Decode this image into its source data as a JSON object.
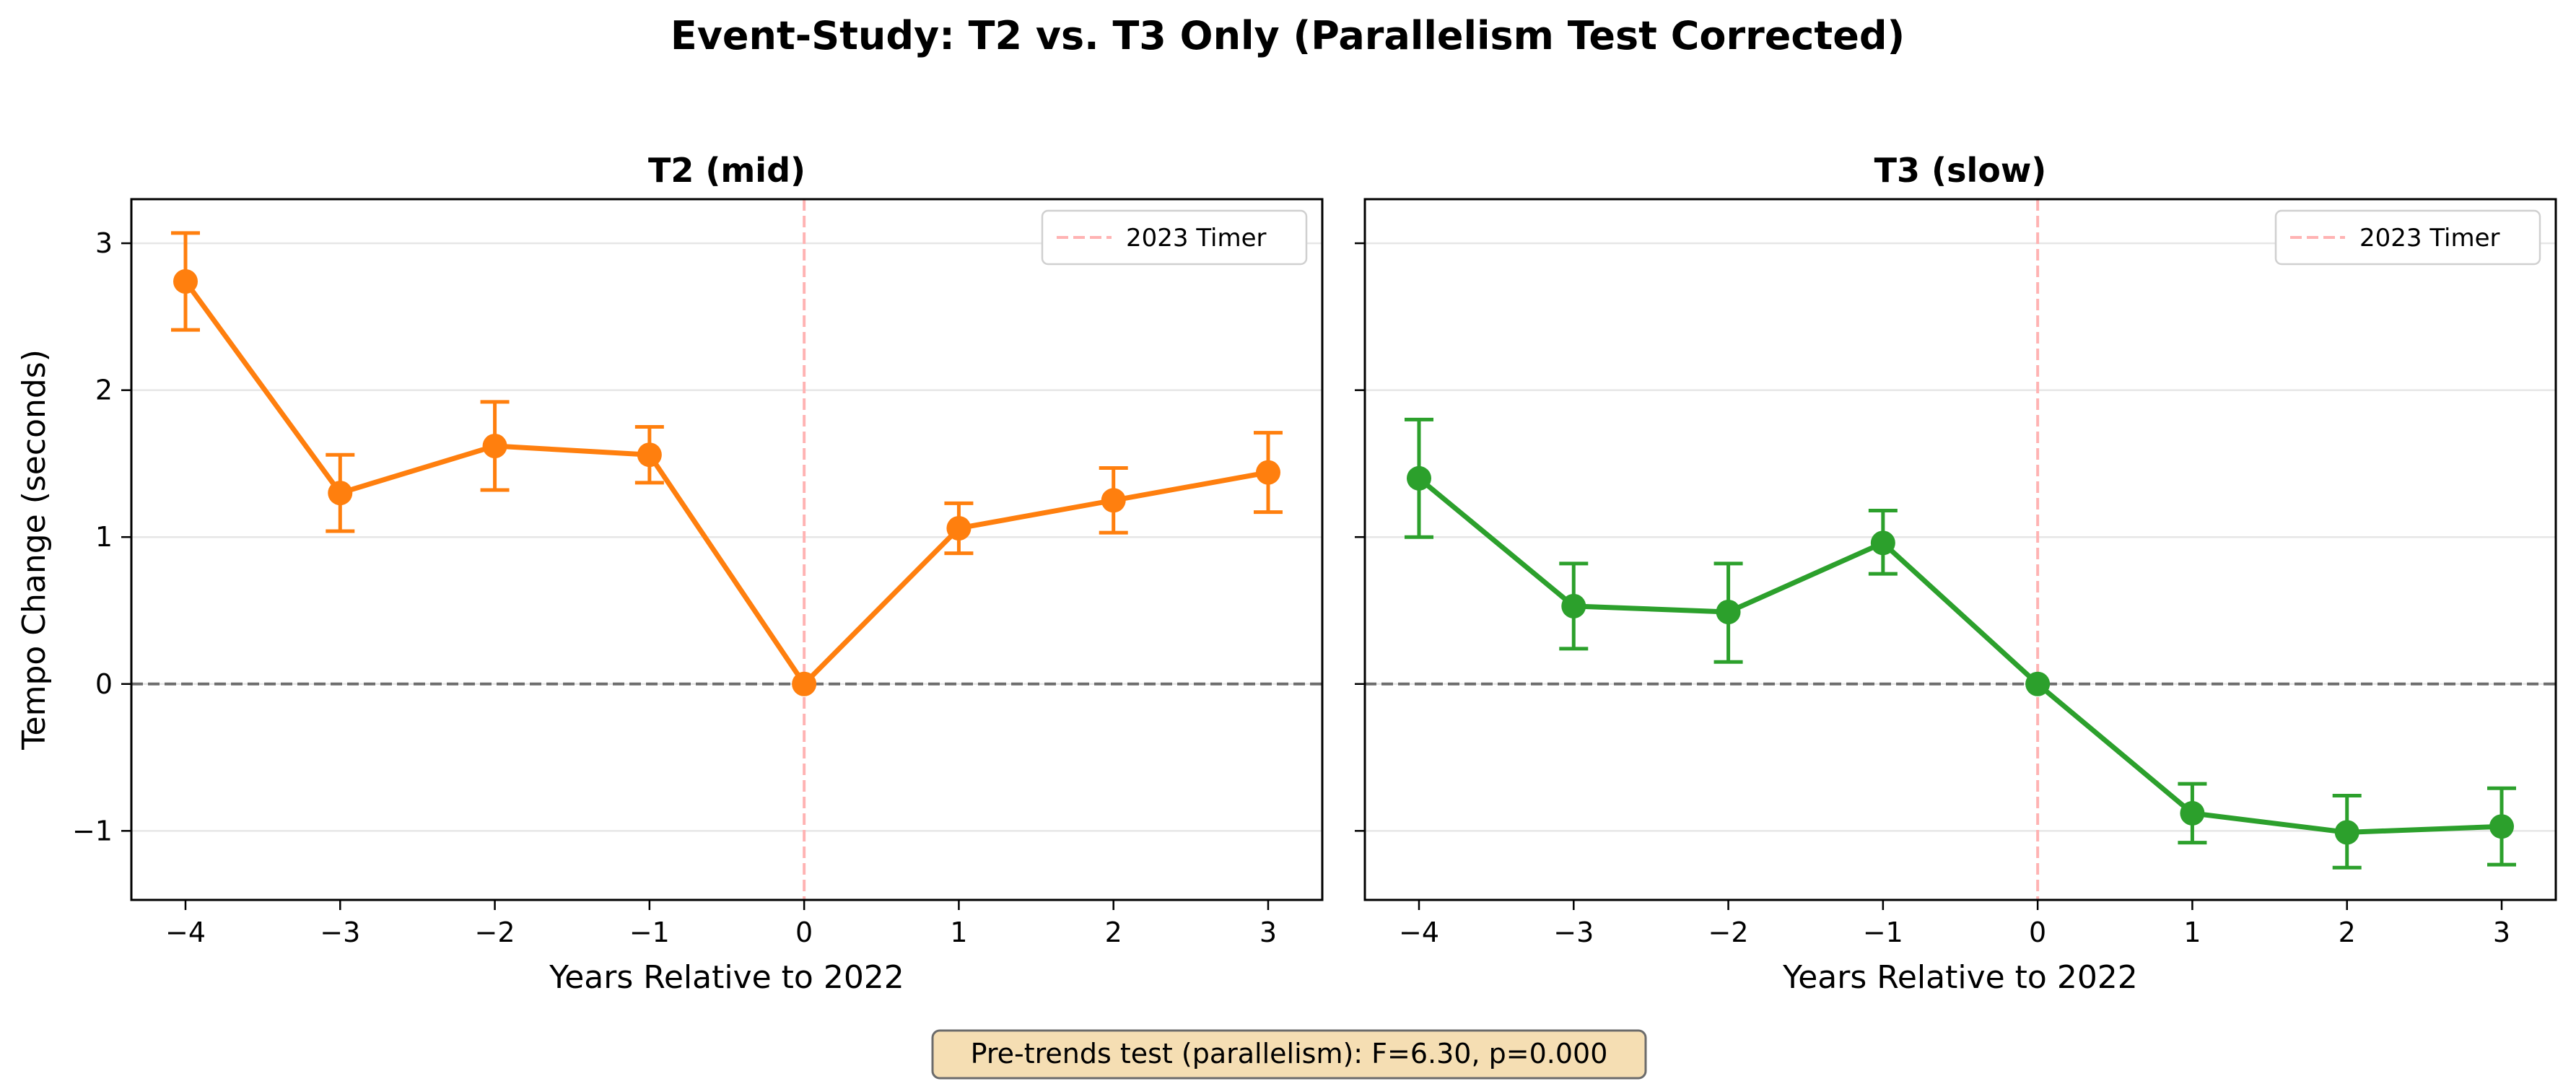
{
  "figure": {
    "title": "Event-Study: T2 vs. T3 Only (Parallelism Test Corrected)",
    "annotation": "Pre-trends test (parallelism): F=6.30, p=0.000"
  },
  "chart_data": [
    {
      "type": "line",
      "title": "T2 (mid)",
      "xlabel": "Years Relative to 2022",
      "ylabel": "Tempo Change (seconds)",
      "xlim": [
        -4.35,
        3.35
      ],
      "ylim": [
        -1.47,
        3.3
      ],
      "xticks": [
        -4,
        -3,
        -2,
        -1,
        0,
        1,
        2,
        3
      ],
      "xtick_labels": [
        "−4",
        "−3",
        "−2",
        "−1",
        "0",
        "1",
        "2",
        "3"
      ],
      "yticks": [
        -1,
        0,
        1,
        2,
        3
      ],
      "ytick_labels": [
        "−1",
        "0",
        "1",
        "2",
        "3"
      ],
      "grid": "horizontal",
      "legend": {
        "position": "top-right",
        "entries": [
          "2023 Timer"
        ]
      },
      "reference_lines": {
        "horizontal_y": 0,
        "vertical_x": 0
      },
      "series": [
        {
          "color": "#ff7f0e",
          "x": [
            -4,
            -3,
            -2,
            -1,
            0,
            1,
            2,
            3
          ],
          "y": [
            2.74,
            1.3,
            1.62,
            1.56,
            0.0,
            1.06,
            1.25,
            1.44
          ],
          "ci_low": [
            2.41,
            1.04,
            1.32,
            1.37,
            0.0,
            0.89,
            1.03,
            1.17
          ],
          "ci_high": [
            3.07,
            1.56,
            1.92,
            1.75,
            0.0,
            1.23,
            1.47,
            1.71
          ]
        }
      ]
    },
    {
      "type": "line",
      "title": "T3 (slow)",
      "xlabel": "Years Relative to 2022",
      "ylabel": "",
      "xlim": [
        -4.35,
        3.35
      ],
      "ylim": [
        -1.47,
        3.3
      ],
      "xticks": [
        -4,
        -3,
        -2,
        -1,
        0,
        1,
        2,
        3
      ],
      "xtick_labels": [
        "−4",
        "−3",
        "−2",
        "−1",
        "0",
        "1",
        "2",
        "3"
      ],
      "yticks": [
        -1,
        0,
        1,
        2,
        3
      ],
      "ytick_labels": [
        "",
        "",
        "",
        "",
        ""
      ],
      "grid": "horizontal",
      "legend": {
        "position": "top-right",
        "entries": [
          "2023 Timer"
        ]
      },
      "reference_lines": {
        "horizontal_y": 0,
        "vertical_x": 0
      },
      "series": [
        {
          "color": "#2ca02c",
          "x": [
            -4,
            -3,
            -2,
            -1,
            0,
            1,
            2,
            3
          ],
          "y": [
            1.4,
            0.53,
            0.49,
            0.96,
            0.0,
            -0.88,
            -1.01,
            -0.97
          ],
          "ci_low": [
            1.0,
            0.24,
            0.15,
            0.75,
            0.0,
            -1.08,
            -1.25,
            -1.23
          ],
          "ci_high": [
            1.8,
            0.82,
            0.82,
            1.18,
            0.0,
            -0.68,
            -0.76,
            -0.71
          ]
        }
      ]
    }
  ],
  "colors": {
    "zero_line": "#6e6e6e",
    "event_line": "#ffb3b3",
    "grid": "#e6e6e6",
    "annotation_bg": "#f5deb3",
    "annotation_border": "#6b6b6b"
  }
}
